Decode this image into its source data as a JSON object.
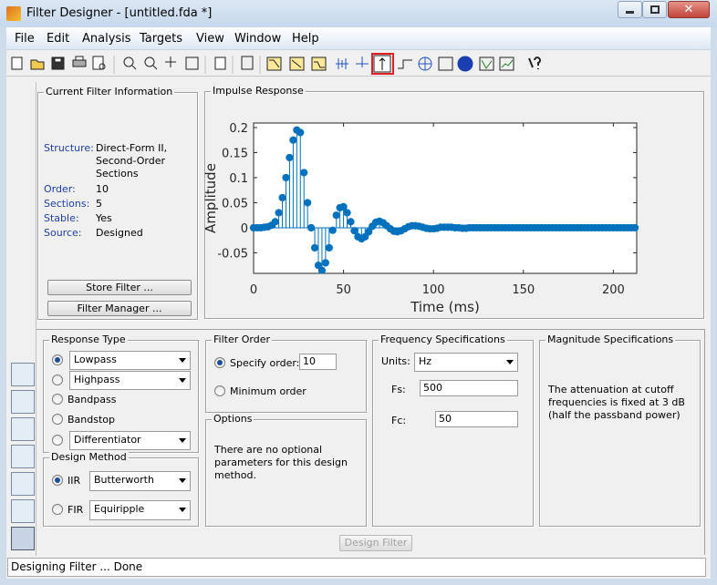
{
  "window": {
    "title": "Filter Designer - [untitled.fda *]"
  },
  "menu": [
    "File",
    "Edit",
    "Analysis",
    "Targets",
    "View",
    "Window",
    "Help"
  ],
  "current_filter_info": {
    "title": "Current Filter Information",
    "fields": [
      {
        "label": "Structure:",
        "value": "Direct-Form II, Second-Order Sections"
      },
      {
        "label": "Order:",
        "value": "10"
      },
      {
        "label": "Sections:",
        "value": "5"
      },
      {
        "label": "Stable:",
        "value": "Yes"
      },
      {
        "label": "Source:",
        "value": "Designed"
      }
    ],
    "buttons": [
      "Store Filter ...",
      "Filter Manager ..."
    ]
  },
  "chart_data": {
    "type": "stem",
    "title": "Impulse Response",
    "x_label": "Time (ms)",
    "y_label": "Amplitude",
    "color": "#0072bd",
    "x": [
      0,
      2,
      4,
      6,
      8,
      10,
      12,
      14,
      16,
      18,
      20,
      22,
      24,
      26,
      28,
      30,
      32,
      34,
      36,
      38,
      40,
      42,
      44,
      46,
      48,
      50,
      52,
      54,
      56,
      58,
      60,
      62,
      64,
      66,
      68,
      70,
      72,
      74,
      76,
      78,
      80,
      82,
      84,
      86,
      88,
      90,
      92,
      94,
      96,
      98,
      100,
      102,
      104,
      106,
      108,
      110,
      112,
      114,
      116,
      118,
      120,
      122,
      124,
      126,
      128,
      130,
      132,
      134,
      136,
      138,
      140,
      142,
      144,
      146,
      148,
      150,
      152,
      154,
      156,
      158,
      160,
      162,
      164,
      166,
      168,
      170,
      172,
      174,
      176,
      178,
      180,
      182,
      184,
      186,
      188,
      190,
      192,
      194,
      196,
      198,
      200,
      202,
      204,
      206,
      208,
      210,
      212
    ],
    "values": [
      0,
      0,
      0,
      0.001,
      0.002,
      0.005,
      0.012,
      0.03,
      0.06,
      0.1,
      0.14,
      0.175,
      0.195,
      0.19,
      0.11,
      0.05,
      0,
      -0.04,
      -0.075,
      -0.085,
      -0.07,
      -0.04,
      -0.005,
      0.025,
      0.04,
      0.042,
      0.03,
      0.012,
      -0.006,
      -0.018,
      -0.022,
      -0.018,
      -0.008,
      0.003,
      0.011,
      0.013,
      0.01,
      0.004,
      -0.002,
      -0.007,
      -0.008,
      -0.006,
      -0.002,
      0.002,
      0.004,
      0.004,
      0.003,
      0.001,
      -0.001,
      -0.002,
      -0.002,
      -0.001,
      0.001,
      0.001,
      0.001,
      0.001,
      0,
      0,
      -0.001,
      -0.001,
      0,
      0,
      0,
      0,
      0,
      0,
      0,
      0,
      0,
      0,
      0,
      0,
      0,
      0,
      0,
      0,
      0,
      0,
      0,
      0,
      0,
      0,
      0,
      0,
      0,
      0,
      0,
      0,
      0,
      0,
      0,
      0,
      0,
      0,
      0,
      0,
      0,
      0,
      0,
      0,
      0,
      0,
      0,
      0,
      0,
      0,
      0
    ],
    "xlim": [
      0,
      213
    ],
    "ylim": [
      -0.091,
      0.209
    ],
    "xticks": [
      0,
      50,
      100,
      150,
      200
    ],
    "yticks": [
      -0.05,
      0,
      0.05,
      0.1,
      0.15,
      0.2
    ]
  },
  "response_type": {
    "title": "Response Type",
    "options": [
      "Lowpass",
      "Highpass",
      "Bandpass",
      "Bandstop",
      "Differentiator"
    ]
  },
  "design_method": {
    "title": "Design Method",
    "iir": "IIR",
    "iir_choice": "Butterworth",
    "fir": "FIR",
    "fir_choice": "Equiripple"
  },
  "filter_order": {
    "title": "Filter Order",
    "specify": "Specify order:",
    "order": "10",
    "minimum": "Minimum order"
  },
  "options": {
    "title": "Options",
    "text": "There are no optional parameters for this design method."
  },
  "frequency_specs": {
    "title": "Frequency Specifications",
    "units_label": "Units:",
    "units": "Hz",
    "fs_label": "Fs:",
    "fs": "500",
    "fc_label": "Fc:",
    "fc": "50"
  },
  "magnitude_specs": {
    "title": "Magnitude Specifications",
    "text": "The attenuation at cutoff frequencies is fixed at 3 dB (half the passband power)"
  },
  "design_button": "Design Filter",
  "status": "Designing Filter ... Done"
}
